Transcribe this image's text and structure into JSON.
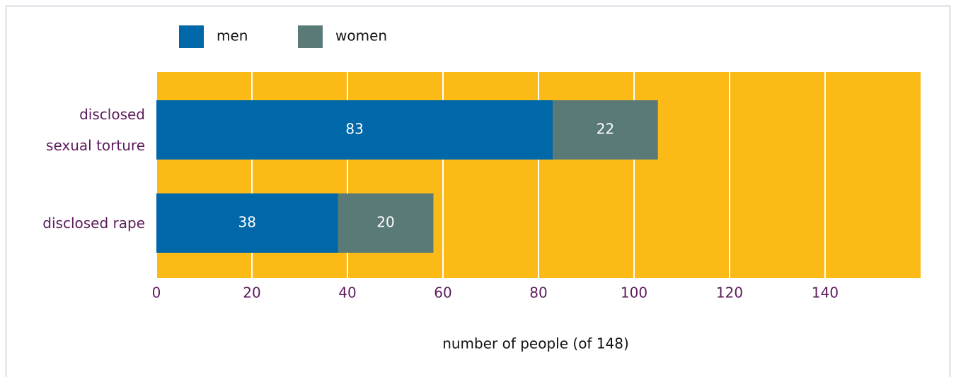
{
  "chart_data": {
    "type": "stacked-barh",
    "categories": [
      "disclosed sexual torture",
      "disclosed rape"
    ],
    "series": [
      {
        "name": "men",
        "color": "#0067a8",
        "values": [
          83,
          38
        ]
      },
      {
        "name": "women",
        "color": "#5a7a78",
        "values": [
          22,
          20
        ]
      }
    ],
    "x_label": "number of people (of 148)",
    "xlim": [
      0,
      160
    ],
    "xticks": [
      0,
      20,
      40,
      60,
      80,
      100,
      120,
      140
    ],
    "grid": true,
    "background": "#fbba16"
  }
}
